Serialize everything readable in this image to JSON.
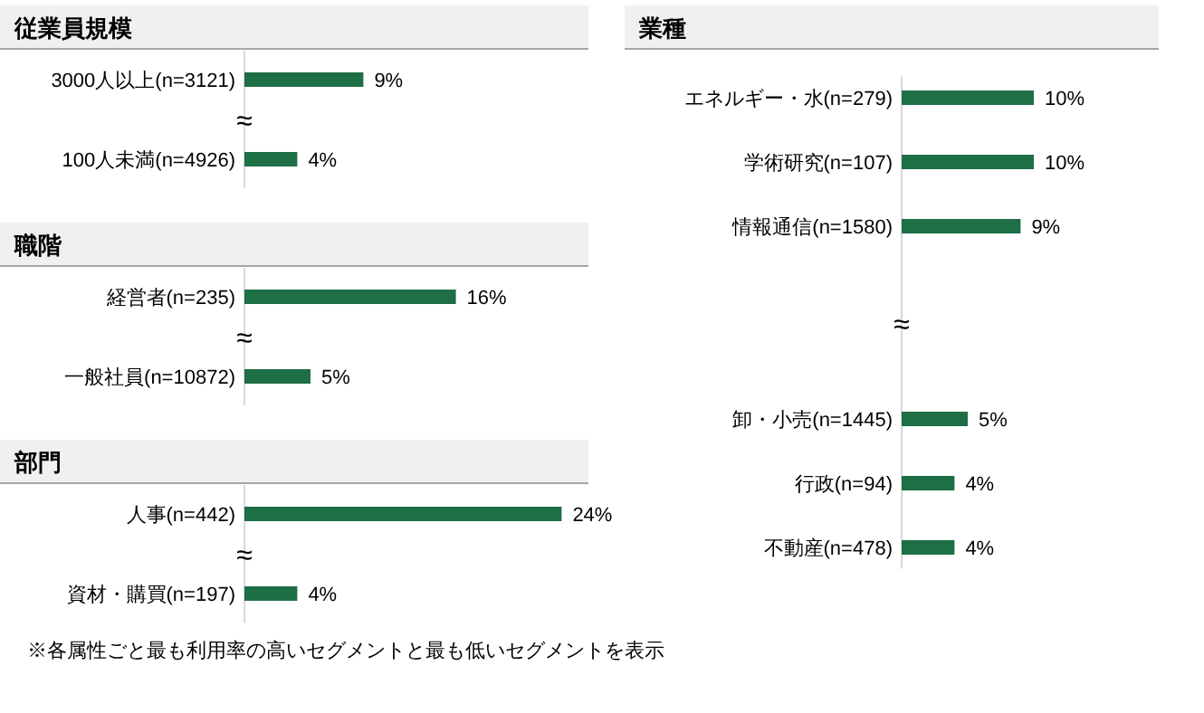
{
  "chart_data": [
    {
      "type": "bar",
      "orientation": "horizontal",
      "title": "従業員規模",
      "categories": [
        "3000人以上(n=3121)",
        "100人未満(n=4926)"
      ],
      "color": "#1e6e46",
      "values": [
        9,
        4
      ],
      "value_labels": [
        "9%",
        "4%"
      ],
      "annotations": [
        "≈"
      ]
    },
    {
      "type": "bar",
      "orientation": "horizontal",
      "title": "職階",
      "categories": [
        "経営者(n=235)",
        "一般社員(n=10872)"
      ],
      "color": "#1e6e46",
      "values": [
        16,
        5
      ],
      "value_labels": [
        "16%",
        "5%"
      ],
      "annotations": [
        "≈"
      ]
    },
    {
      "type": "bar",
      "orientation": "horizontal",
      "title": "部門",
      "categories": [
        "人事(n=442)",
        "資材・購買(n=197)"
      ],
      "color": "#1e6e46",
      "values": [
        24,
        4
      ],
      "value_labels": [
        "24%",
        "4%"
      ],
      "annotations": [
        "≈",
        "※各属性ごと最も利用率の高いセグメントと最も低いセグメントを表示"
      ]
    },
    {
      "type": "bar",
      "orientation": "horizontal",
      "title": "業種",
      "categories": [
        "エネルギー・水(n=279)",
        "学術研究(n=107)",
        "情報通信(n=1580)",
        null,
        null,
        "卸・小売(n=1445)",
        "行政(n=94)",
        "不動産(n=478)"
      ],
      "color": "#1e6e46",
      "values": [
        10,
        10,
        9,
        null,
        null,
        5,
        4,
        4
      ],
      "value_labels": [
        "10%",
        "10%",
        "9%",
        null,
        null,
        "5%",
        "4%",
        "4%"
      ],
      "annotations": [
        "≈"
      ]
    }
  ]
}
